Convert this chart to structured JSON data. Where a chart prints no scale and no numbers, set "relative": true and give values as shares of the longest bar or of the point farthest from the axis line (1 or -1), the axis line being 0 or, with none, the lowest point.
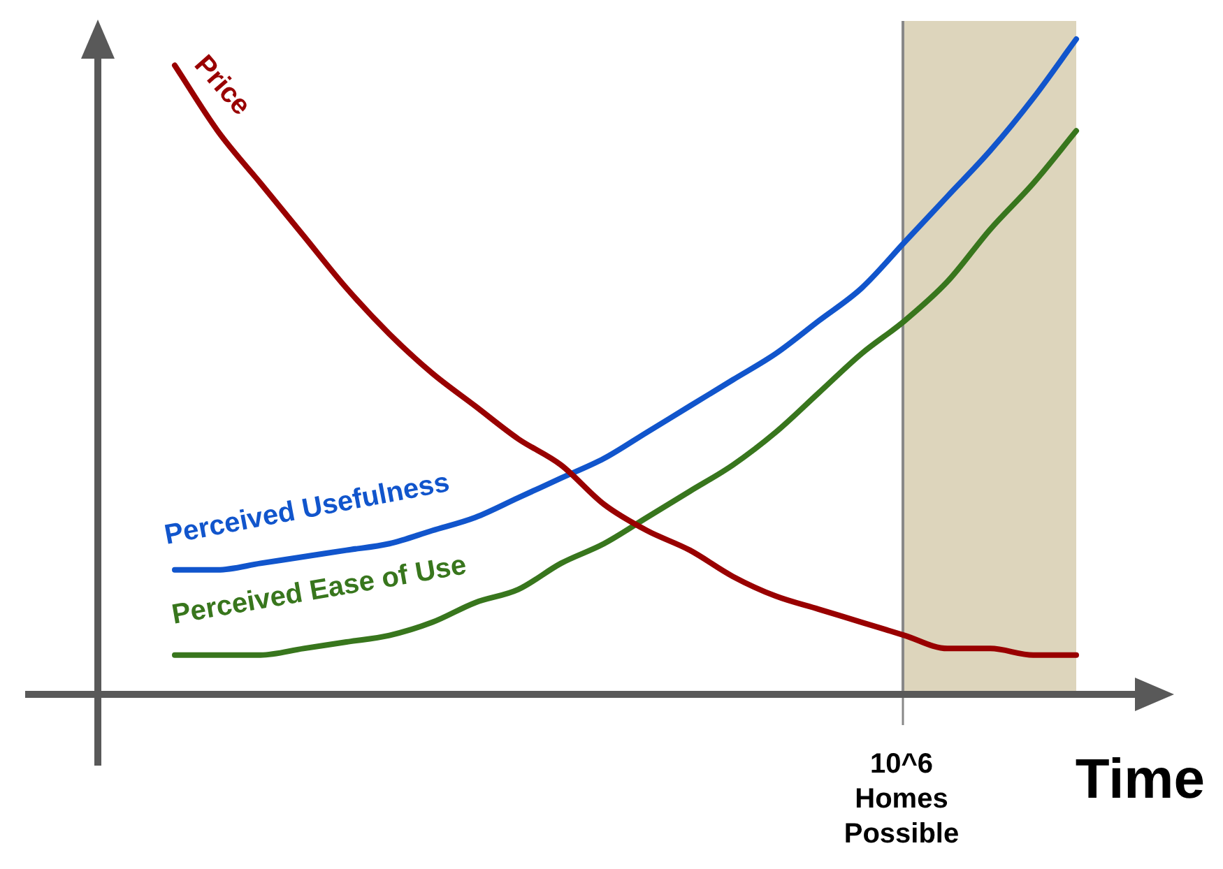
{
  "chart_data": {
    "type": "line",
    "relative": true,
    "xlabel": "Time",
    "legend": false,
    "grid": false,
    "marker": "none",
    "line_style": "solid",
    "categories": [
      null,
      null,
      null,
      null,
      null,
      null,
      null,
      null,
      null,
      null,
      null,
      null,
      null,
      null,
      null,
      null,
      null,
      null,
      null,
      null,
      null,
      null
    ],
    "series": [
      {
        "name": "Price",
        "color": "#990000",
        "values": [
          0.96,
          0.86,
          0.78,
          0.7,
          0.62,
          0.55,
          0.49,
          0.44,
          0.39,
          0.35,
          0.29,
          0.25,
          0.22,
          0.18,
          0.15,
          0.13,
          0.11,
          0.09,
          0.07,
          0.07,
          0.06,
          0.06
        ]
      },
      {
        "name": "Perceived Usefulness",
        "color": "#1155cc",
        "values": [
          0.19,
          0.19,
          0.2,
          0.21,
          0.22,
          0.23,
          0.25,
          0.27,
          0.3,
          0.33,
          0.36,
          0.4,
          0.44,
          0.48,
          0.52,
          0.57,
          0.62,
          0.69,
          0.76,
          0.83,
          0.91,
          1
        ]
      },
      {
        "name": "Perceived Ease of Use",
        "color": "#38761d",
        "values": [
          0.06,
          0.06,
          0.06,
          0.07,
          0.08,
          0.09,
          0.11,
          0.14,
          0.16,
          0.2,
          0.23,
          0.27,
          0.31,
          0.35,
          0.4,
          0.46,
          0.52,
          0.57,
          0.63,
          0.71,
          0.78,
          0.86
        ]
      }
    ],
    "annotations": [
      "10^6 Homes Possible"
    ]
  }
}
